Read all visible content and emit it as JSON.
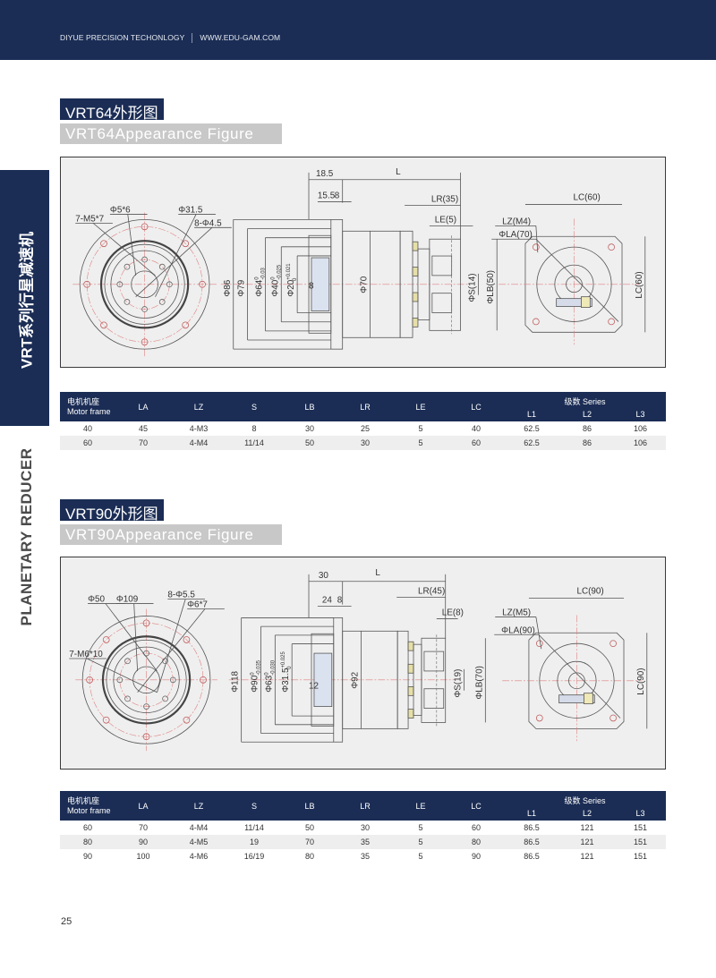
{
  "header": {
    "company": "DIYUE PRECISION TECHONLOGY",
    "website": "WWW.EDU-GAM.COM"
  },
  "sidebar": {
    "series_cn": "VRT系列行星减速机",
    "series_en": "PLANETARY REDUCER"
  },
  "colors": {
    "navy": "#1b2d55",
    "title_gray": "#c8c8c8",
    "drawing_bg": "#efefef",
    "center_line": "#e08080"
  },
  "sections": [
    {
      "title_cn": "VRT64外形图",
      "title_en": "VRT64Appearance Figure",
      "drawing": {
        "front": [
          "7-M5*7",
          "Φ5*6",
          "Φ31.5",
          "8-Φ4.5"
        ],
        "side": {
          "total": "18.5",
          "pilot": "15.5",
          "flange": "8",
          "length": "L",
          "lr": "LR(35)",
          "le": "LE(5)",
          "d1": {
            "text": "Φ86"
          },
          "d2": {
            "text": "Φ79"
          },
          "d3": {
            "text": "Φ64",
            "tol_upper": "0",
            "tol_lower": "-0.03"
          },
          "d4": {
            "text": "Φ40",
            "tol_upper": "0",
            "tol_lower": "-0.025"
          },
          "d5": {
            "text": "Φ20",
            "tol_upper": "+0.021",
            "tol_lower": "0"
          },
          "key": "8",
          "body": "Φ70",
          "shaft": "ΦS(14)",
          "lb": "ΦLB(50)"
        },
        "rear": {
          "lc_top": "LC(60)",
          "lz": "LZ(M4)",
          "la": "ΦLA(70)",
          "lc_side": "LC(60)"
        }
      },
      "table": {
        "headers": {
          "motor_cn": "电机机座",
          "motor_en": "Motor frame",
          "cols": [
            "LA",
            "LZ",
            "S",
            "LB",
            "LR",
            "LE",
            "LC"
          ],
          "series": "级数  Series",
          "series_cols": [
            "L1",
            "L2",
            "L3"
          ]
        },
        "rows": [
          [
            "40",
            "45",
            "4-M3",
            "8",
            "30",
            "25",
            "5",
            "40",
            "62.5",
            "86",
            "106"
          ],
          [
            "60",
            "70",
            "4-M4",
            "11/14",
            "50",
            "30",
            "5",
            "60",
            "62.5",
            "86",
            "106"
          ]
        ]
      }
    },
    {
      "title_cn": "VRT90外形图",
      "title_en": "VRT90Appearance Figure",
      "drawing": {
        "front": [
          "Φ50",
          "Φ109",
          "8-Φ5.5",
          "Φ6*7",
          "7-M6*10"
        ],
        "side": {
          "total": "30",
          "pilot": "24",
          "flange": "8",
          "length": "L",
          "lr": "LR(45)",
          "le": "LE(8)",
          "d1": {
            "text": "Φ118"
          },
          "d2": {
            "text": "Φ90",
            "tol_upper": "0",
            "tol_lower": "-0.035"
          },
          "d3": {
            "text": "Φ63",
            "tol_upper": "0",
            "tol_lower": "-0.030"
          },
          "d4": {
            "text": "Φ31.5",
            "tol_upper": "+0.025",
            "tol_lower": "0"
          },
          "key": "12",
          "body": "Φ92",
          "shaft": "ΦS(19)",
          "lb": "ΦLB(70)"
        },
        "rear": {
          "lc_top": "LC(90)",
          "lz": "LZ(M5)",
          "la": "ΦLA(90)",
          "lc_side": "LC(90)"
        }
      },
      "table": {
        "headers": {
          "motor_cn": "电机机座",
          "motor_en": "Motor frame",
          "cols": [
            "LA",
            "LZ",
            "S",
            "LB",
            "LR",
            "LE",
            "LC"
          ],
          "series": "级数  Series",
          "series_cols": [
            "L1",
            "L2",
            "L3"
          ]
        },
        "rows": [
          [
            "60",
            "70",
            "4-M4",
            "11/14",
            "50",
            "30",
            "5",
            "60",
            "86.5",
            "121",
            "151"
          ],
          [
            "80",
            "90",
            "4-M5",
            "19",
            "70",
            "35",
            "5",
            "80",
            "86.5",
            "121",
            "151"
          ],
          [
            "90",
            "100",
            "4-M6",
            "16/19",
            "80",
            "35",
            "5",
            "90",
            "86.5",
            "121",
            "151"
          ]
        ]
      }
    }
  ],
  "page_number": "25"
}
